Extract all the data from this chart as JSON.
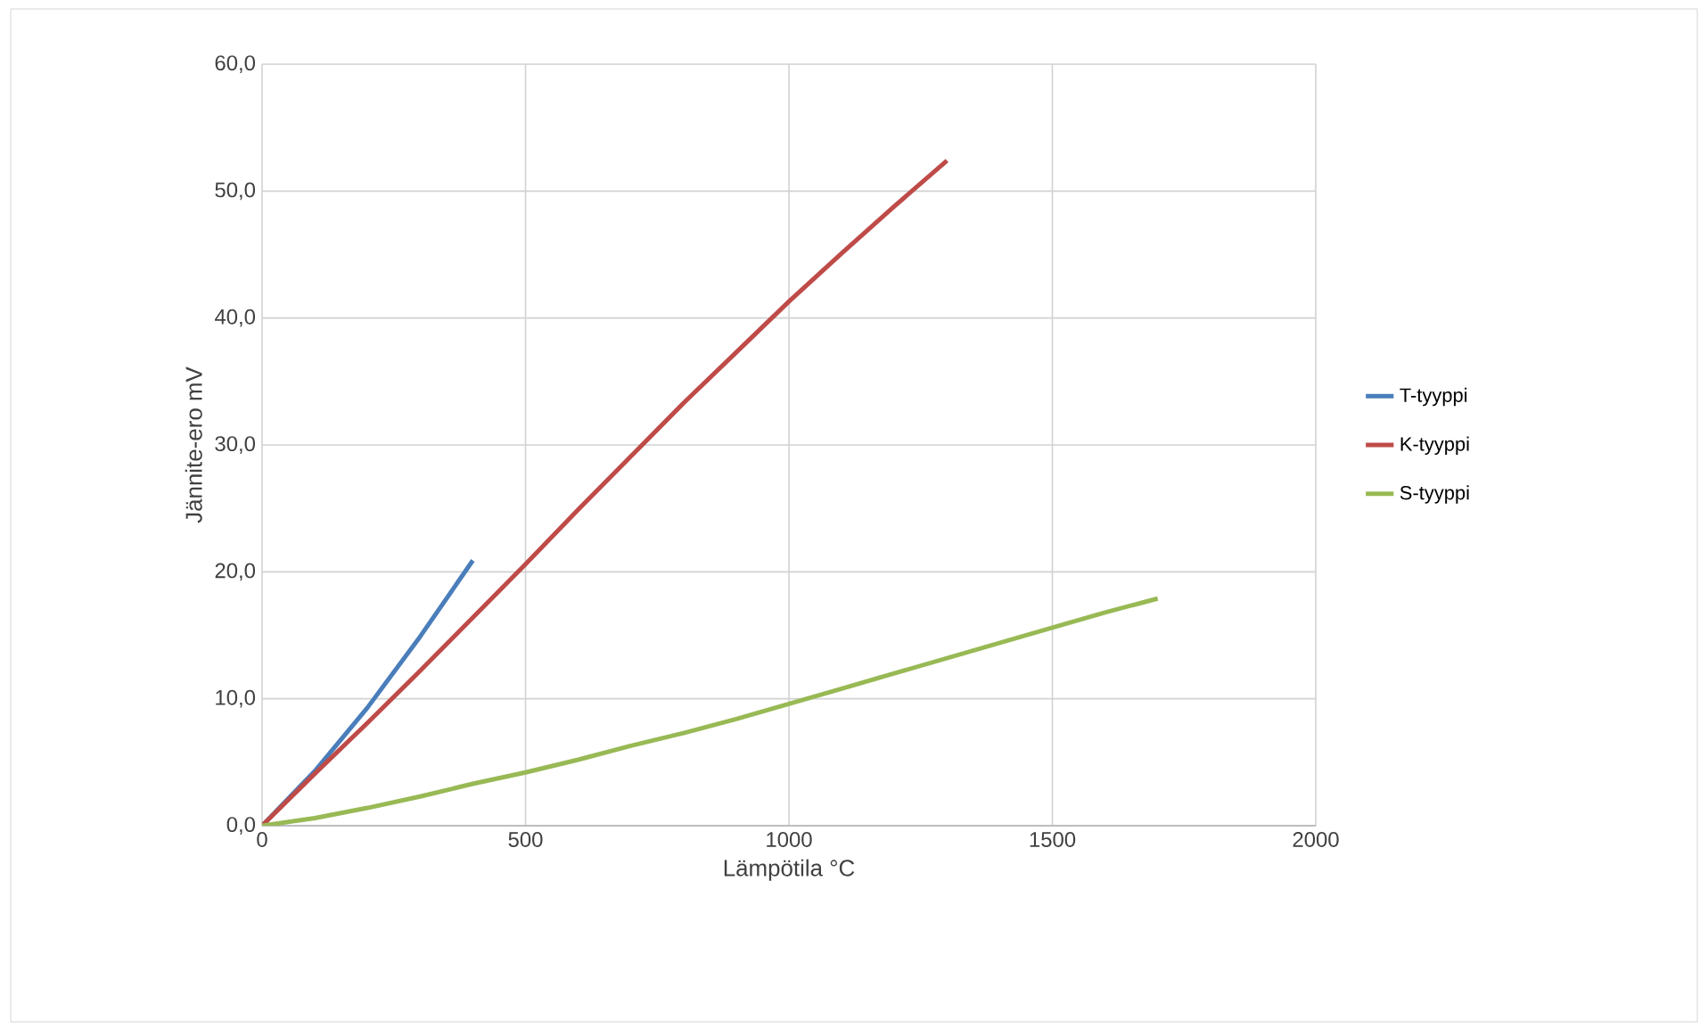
{
  "chart_data": {
    "type": "line",
    "xlabel": "Lämpötila °C",
    "ylabel": "Jännite-ero mV",
    "xlim": [
      0,
      2000
    ],
    "xticks": [
      0,
      500,
      1000,
      1500,
      2000
    ],
    "ylim": [
      0,
      60
    ],
    "yticks": [
      {
        "value": 0,
        "label": "0,0"
      },
      {
        "value": 10,
        "label": "10,0"
      },
      {
        "value": 20,
        "label": "20,0"
      },
      {
        "value": 30,
        "label": "30,0"
      },
      {
        "value": 40,
        "label": "40,0"
      },
      {
        "value": 50,
        "label": "50,0"
      },
      {
        "value": 60,
        "label": "60,0"
      }
    ],
    "grid": true,
    "legend": "right",
    "marker": "none",
    "line_style": "solid",
    "series": [
      {
        "name": "T-tyyppi",
        "color": "#4a7ebb",
        "x": [
          0,
          100,
          200,
          300,
          400
        ],
        "values": [
          0,
          4.3,
          9.3,
          14.9,
          20.9
        ]
      },
      {
        "name": "K-tyyppi",
        "color": "#be4b48",
        "x": [
          0,
          100,
          200,
          300,
          400,
          500,
          600,
          700,
          800,
          900,
          1000,
          1100,
          1200,
          1300
        ],
        "values": [
          0,
          4.1,
          8.1,
          12.2,
          16.4,
          20.6,
          24.9,
          29.1,
          33.3,
          37.3,
          41.3,
          45.1,
          48.8,
          52.4
        ]
      },
      {
        "name": "S-tyyppi",
        "color": "#98b954",
        "x": [
          0,
          100,
          200,
          300,
          400,
          500,
          600,
          700,
          800,
          900,
          1000,
          1100,
          1200,
          1300,
          1400,
          1500,
          1600,
          1700
        ],
        "values": [
          0,
          0.6,
          1.4,
          2.3,
          3.3,
          4.2,
          5.2,
          6.3,
          7.3,
          8.4,
          9.6,
          10.8,
          12.0,
          13.2,
          14.4,
          15.6,
          16.8,
          17.9
        ]
      }
    ]
  }
}
